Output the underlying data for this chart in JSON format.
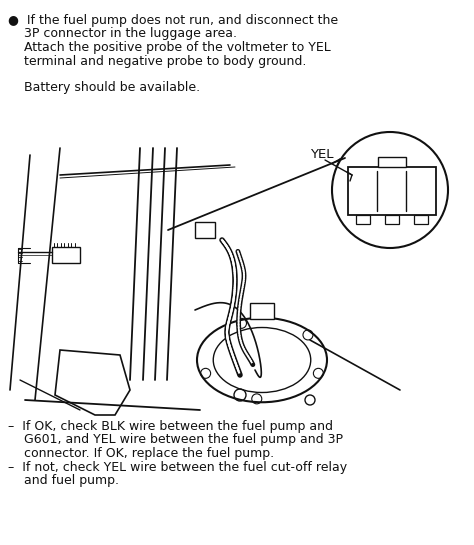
{
  "background_color": "#ffffff",
  "figsize": [
    4.74,
    5.45
  ],
  "dpi": 100,
  "top_text_line1": "●  If the fuel pump does not run, and disconnect the",
  "top_text_line2": "    3P connector in the luggage area.",
  "top_text_line3": "    Attach the positive probe of the voltmeter to YEL",
  "top_text_line4": "    terminal and negative probe to body ground.",
  "top_text_line5": "",
  "top_text_line6": "    Battery should be available.",
  "bottom_text_line1": "–  If OK, check BLK wire between the fuel pump and",
  "bottom_text_line2": "    G601, and YEL wire between the fuel pump and 3P",
  "bottom_text_line3": "    connector. If OK, replace the fuel pump.",
  "bottom_text_line4": "–  If not, check YEL wire between the fuel cut-off relay",
  "bottom_text_line5": "    and fuel pump.",
  "yel_text": "YEL",
  "color": "#111111"
}
